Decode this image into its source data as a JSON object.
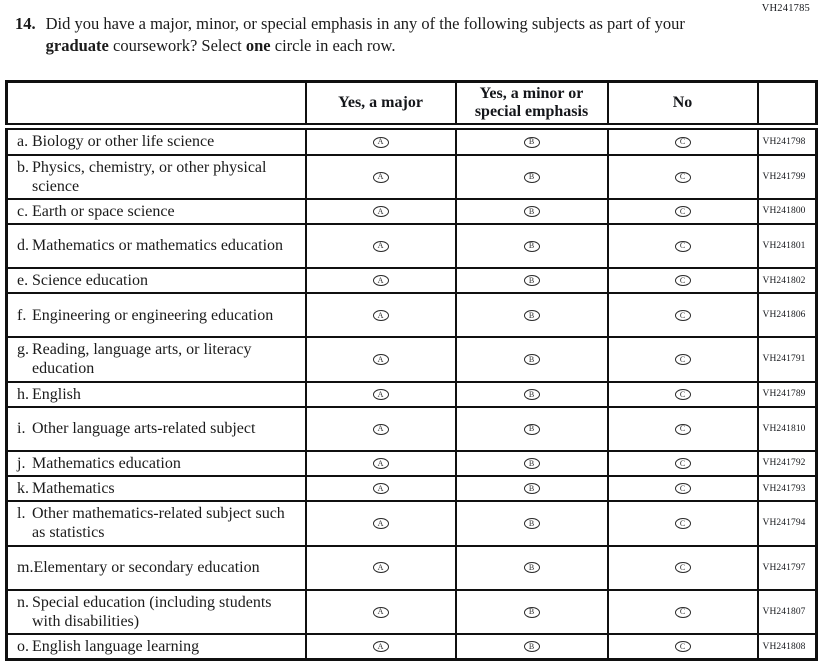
{
  "page": {
    "corner_code": "VH241785"
  },
  "question": {
    "number": "14.",
    "text_pre": "Did you have a major, minor, or special emphasis in any of the following subjects as part of your ",
    "bold_1": "graduate",
    "text_mid": " coursework? Select ",
    "bold_2": "one",
    "text_post": " circle in each row."
  },
  "table": {
    "headers": {
      "col_major": "Yes, a major",
      "col_minor": "Yes, a minor or special emphasis",
      "col_no": "No"
    },
    "options": [
      "A",
      "B",
      "C"
    ],
    "rows": [
      {
        "letter": "a.",
        "text": "Biology or other life science",
        "code": "VH241798"
      },
      {
        "letter": "b.",
        "text": "Physics, chemistry, or other physical science",
        "code": "VH241799"
      },
      {
        "letter": "c.",
        "text": "Earth or space science",
        "code": "VH241800"
      },
      {
        "letter": "d.",
        "text": "Mathematics or mathematics education",
        "code": "VH241801"
      },
      {
        "letter": "e.",
        "text": "Science education",
        "code": "VH241802"
      },
      {
        "letter": "f.",
        "text": "Engineering or engineering education",
        "code": "VH241806"
      },
      {
        "letter": "g.",
        "text": "Reading, language arts, or literacy education",
        "code": "VH241791"
      },
      {
        "letter": "h.",
        "text": "English",
        "code": "VH241789"
      },
      {
        "letter": "i.",
        "text": "Other language arts-related subject",
        "code": "VH241810"
      },
      {
        "letter": "j.",
        "text": "Mathematics education",
        "code": "VH241792"
      },
      {
        "letter": "k.",
        "text": "Mathematics",
        "code": "VH241793"
      },
      {
        "letter": "l.",
        "text": "Other mathematics-related subject such as statistics",
        "code": "VH241794"
      },
      {
        "letter": "m.",
        "text": "Elementary or secondary education",
        "code": "VH241797"
      },
      {
        "letter": "n.",
        "text": "Special education (including students with disabilities)",
        "code": "VH241807"
      },
      {
        "letter": "o.",
        "text": "English language learning",
        "code": "VH241808"
      }
    ]
  }
}
